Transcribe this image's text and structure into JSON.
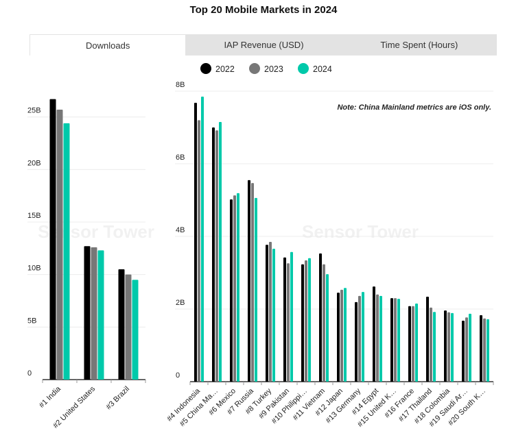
{
  "title": "Top 20 Mobile Markets in 2024",
  "tabs": [
    {
      "label": "Downloads",
      "active": true
    },
    {
      "label": "IAP Revenue (USD)",
      "active": false
    },
    {
      "label": "Time Spent (Hours)",
      "active": false
    }
  ],
  "note": "Note: China Mainland metrics are iOS only.",
  "watermark": "Sensor Tower",
  "colors": {
    "2022": "#000000",
    "2023": "#777777",
    "2024": "#00c9aa"
  },
  "chart_data": [
    {
      "type": "bar",
      "xlabel": "",
      "ylabel": "",
      "ylim": [
        0,
        27000000000
      ],
      "yticks": [
        {
          "v": 0,
          "label": "0"
        },
        {
          "v": 5000000000.0,
          "label": "5B"
        },
        {
          "v": 10000000000.0,
          "label": "10B"
        },
        {
          "v": 15000000000.0,
          "label": "15B"
        },
        {
          "v": 20000000000.0,
          "label": "20B"
        },
        {
          "v": 25000000000.0,
          "label": "25B"
        }
      ],
      "grid": true,
      "legend": "top",
      "categories": [
        "#1 India",
        "#2 United States",
        "#3 Brazil"
      ],
      "series": [
        {
          "name": "2022",
          "values": [
            26700000000.0,
            12700000000.0,
            10500000000.0
          ]
        },
        {
          "name": "2023",
          "values": [
            25700000000.0,
            12600000000.0,
            10000000000.0
          ]
        },
        {
          "name": "2024",
          "values": [
            24400000000.0,
            12300000000.0,
            9500000000.0
          ]
        }
      ]
    },
    {
      "type": "bar",
      "xlabel": "",
      "ylabel": "",
      "ylim": [
        0,
        8000000000
      ],
      "yticks": [
        {
          "v": 0,
          "label": "0"
        },
        {
          "v": 2000000000.0,
          "label": "2B"
        },
        {
          "v": 4000000000.0,
          "label": "4B"
        },
        {
          "v": 6000000000.0,
          "label": "6B"
        },
        {
          "v": 8000000000.0,
          "label": "8B"
        }
      ],
      "grid": true,
      "legend": "top",
      "categories": [
        "#4 Indonesia",
        "#5 China Ma…",
        "#6 Mexico",
        "#7 Russia",
        "#8 Turkey",
        "#9 Pakistan",
        "#10 Philippi…",
        "#11 Vietnam",
        "#12 Japan",
        "#13 Germany",
        "#14 Egypt",
        "#15 United K…",
        "#16 France",
        "#17 Thailand",
        "#18 Colombia",
        "#19 Saudi Ar…",
        "#20 South K…"
      ],
      "series": [
        {
          "name": "2022",
          "values": [
            7680000000.0,
            7000000000.0,
            5020000000.0,
            5550000000.0,
            3770000000.0,
            3420000000.0,
            3230000000.0,
            3530000000.0,
            2450000000.0,
            2190000000.0,
            2620000000.0,
            2300000000.0,
            2080000000.0,
            2340000000.0,
            1960000000.0,
            1680000000.0,
            1830000000.0
          ]
        },
        {
          "name": "2023",
          "values": [
            7200000000.0,
            6920000000.0,
            5130000000.0,
            5470000000.0,
            3850000000.0,
            3260000000.0,
            3340000000.0,
            3230000000.0,
            2530000000.0,
            2360000000.0,
            2400000000.0,
            2300000000.0,
            2080000000.0,
            2040000000.0,
            1910000000.0,
            1770000000.0,
            1740000000.0
          ]
        },
        {
          "name": "2024",
          "values": [
            7850000000.0,
            7150000000.0,
            5190000000.0,
            5060000000.0,
            3660000000.0,
            3570000000.0,
            3400000000.0,
            2960000000.0,
            2580000000.0,
            2470000000.0,
            2360000000.0,
            2280000000.0,
            2150000000.0,
            1920000000.0,
            1890000000.0,
            1870000000.0,
            1720000000.0
          ]
        }
      ]
    }
  ]
}
